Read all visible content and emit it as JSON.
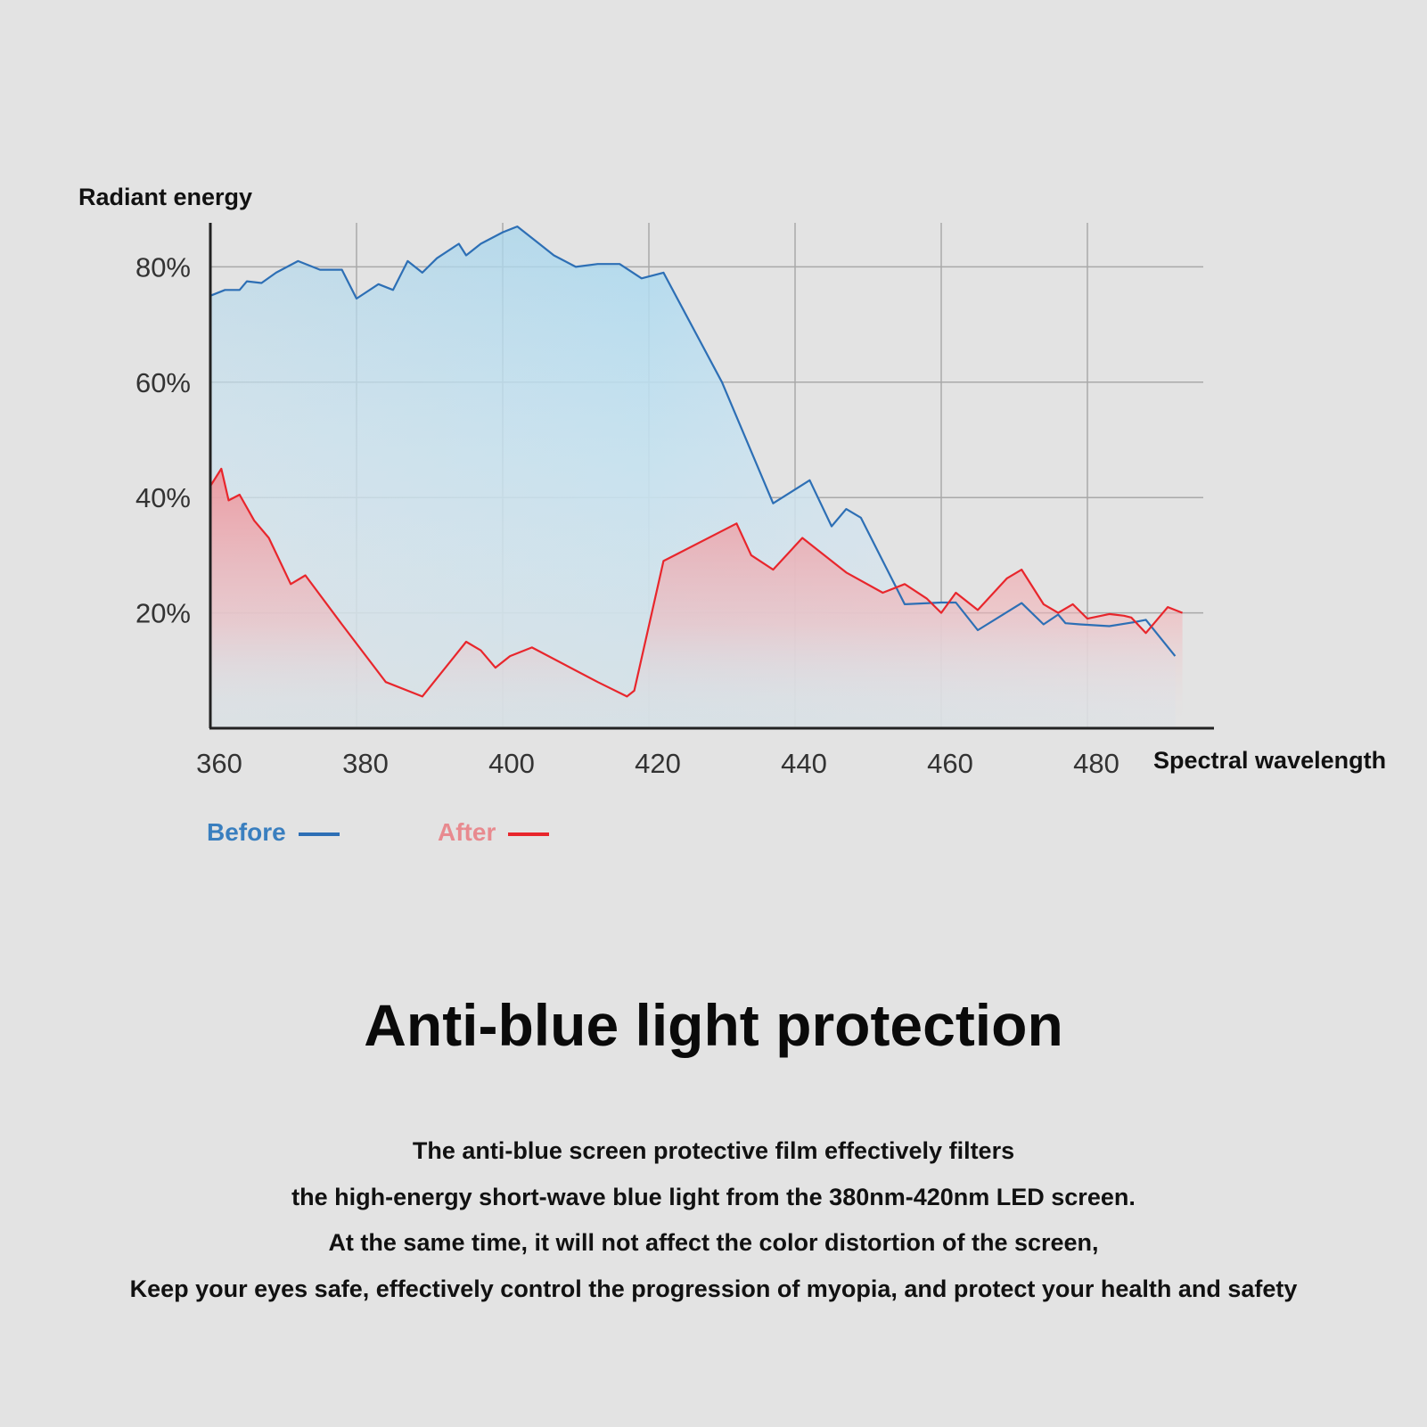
{
  "chart_data": {
    "type": "area",
    "ylabel": "Radiant energy",
    "xlabel": "Spectral wavelength",
    "x_ticks": [
      360,
      380,
      400,
      420,
      440,
      460,
      480
    ],
    "y_tick_labels": [
      "80%",
      "60%",
      "40%",
      "20%"
    ],
    "y_tick_values": [
      80,
      60,
      40,
      20
    ],
    "xlim": [
      360,
      493
    ],
    "grid": true,
    "legend": "bottom-left",
    "series": [
      {
        "name": "Before",
        "color": "#2d6fb5",
        "fill": "#9fd2ec",
        "points": [
          [
            360,
            75
          ],
          [
            362,
            76
          ],
          [
            364,
            76
          ],
          [
            365,
            77.5
          ],
          [
            367,
            77.2
          ],
          [
            369,
            79
          ],
          [
            372,
            81
          ],
          [
            375,
            79.5
          ],
          [
            378,
            79.5
          ],
          [
            380,
            74.5
          ],
          [
            383,
            77
          ],
          [
            385,
            76
          ],
          [
            387,
            81
          ],
          [
            389,
            79
          ],
          [
            391,
            81.5
          ],
          [
            394,
            84
          ],
          [
            395,
            82
          ],
          [
            397,
            84
          ],
          [
            400,
            86
          ],
          [
            402,
            87
          ],
          [
            405,
            84
          ],
          [
            407,
            82
          ],
          [
            410,
            80
          ],
          [
            413,
            80.5
          ],
          [
            416,
            80.5
          ],
          [
            419,
            78
          ],
          [
            422,
            79
          ],
          [
            430,
            60
          ],
          [
            437,
            39
          ],
          [
            442,
            43
          ],
          [
            445,
            35
          ],
          [
            447,
            38
          ],
          [
            449,
            36.5
          ],
          [
            455,
            21.5
          ],
          [
            460,
            21.8
          ],
          [
            462,
            21.8
          ],
          [
            465,
            17
          ],
          [
            471,
            21.7
          ],
          [
            474,
            18
          ],
          [
            476,
            19.7
          ],
          [
            477,
            18.2
          ],
          [
            479,
            18
          ],
          [
            483,
            17.7
          ],
          [
            486,
            18.3
          ],
          [
            488,
            18.8
          ],
          [
            492,
            12.5
          ]
        ]
      },
      {
        "name": "After",
        "color": "#e8262c",
        "fill": "#f4a8ae",
        "points": [
          [
            360,
            42
          ],
          [
            361.5,
            45
          ],
          [
            362.5,
            39.5
          ],
          [
            364,
            40.5
          ],
          [
            366,
            36
          ],
          [
            368,
            33
          ],
          [
            371,
            25
          ],
          [
            373,
            26.5
          ],
          [
            378,
            18
          ],
          [
            384,
            8
          ],
          [
            389,
            5.5
          ],
          [
            395,
            15
          ],
          [
            397,
            13.5
          ],
          [
            399,
            10.5
          ],
          [
            401,
            12.5
          ],
          [
            404,
            14
          ],
          [
            413,
            8
          ],
          [
            417,
            5.5
          ],
          [
            418,
            6.5
          ],
          [
            422,
            29
          ],
          [
            432,
            35.5
          ],
          [
            434,
            30
          ],
          [
            437,
            27.5
          ],
          [
            441,
            33
          ],
          [
            447,
            27
          ],
          [
            452,
            23.5
          ],
          [
            455,
            25
          ],
          [
            458,
            22.5
          ],
          [
            460,
            20
          ],
          [
            462,
            23.5
          ],
          [
            465,
            20.5
          ],
          [
            469,
            26
          ],
          [
            471,
            27.5
          ],
          [
            474,
            21.5
          ],
          [
            476,
            20
          ],
          [
            478,
            21.5
          ],
          [
            480,
            19
          ],
          [
            483,
            19.8
          ],
          [
            485,
            19.5
          ],
          [
            486,
            19.2
          ],
          [
            488,
            16.5
          ],
          [
            491,
            21
          ],
          [
            493,
            20
          ]
        ]
      }
    ]
  },
  "legend": {
    "before": "Before",
    "after": "After"
  },
  "headline": "Anti-blue light protection",
  "description": [
    "The anti-blue screen protective film effectively filters",
    "the high-energy short-wave blue light from the 380nm-420nm LED screen.",
    "At the same time, it will not affect the color distortion of the screen,",
    "Keep your eyes safe, effectively control the progression of myopia, and protect your health and safety"
  ]
}
